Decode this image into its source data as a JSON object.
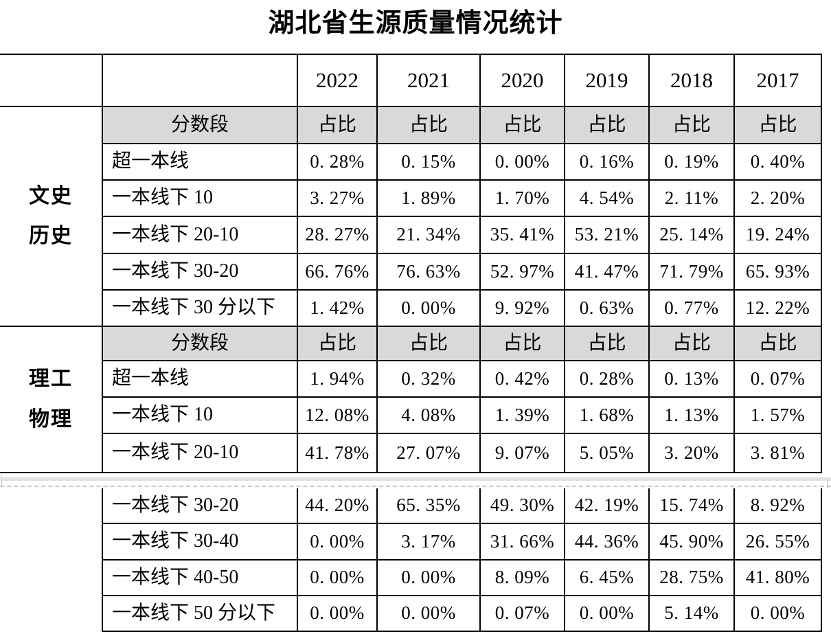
{
  "title": "湖北省生源质量情况统计",
  "table": {
    "years": [
      "2022",
      "2021",
      "2020",
      "2019",
      "2018",
      "2017"
    ],
    "score_band_header": "分数段",
    "ratio_header": "占比",
    "groups": [
      {
        "name_lines": [
          "文史",
          "历史"
        ],
        "rows": [
          {
            "label": "超一本线",
            "values": [
              "0. 28%",
              "0. 15%",
              "0. 00%",
              "0. 16%",
              "0. 19%",
              "0. 40%"
            ]
          },
          {
            "label": "一本线下 10",
            "values": [
              "3. 27%",
              "1. 89%",
              "1. 70%",
              "4. 54%",
              "2. 11%",
              "2. 20%"
            ]
          },
          {
            "label": "一本线下 20-10",
            "values": [
              "28. 27%",
              "21. 34%",
              "35. 41%",
              "53. 21%",
              "25. 14%",
              "19. 24%"
            ]
          },
          {
            "label": "一本线下 30-20",
            "values": [
              "66. 76%",
              "76. 63%",
              "52. 97%",
              "41. 47%",
              "71. 79%",
              "65. 93%"
            ]
          },
          {
            "label": "一本线下 30 分以下",
            "values": [
              "1. 42%",
              "0. 00%",
              "9. 92%",
              "0. 63%",
              "0. 77%",
              "12. 22%"
            ]
          }
        ]
      },
      {
        "name_lines": [
          "理工",
          "物理"
        ],
        "rows": [
          {
            "label": "超一本线",
            "values": [
              "1. 94%",
              "0. 32%",
              "0. 42%",
              "0. 28%",
              "0. 13%",
              "0. 07%"
            ]
          },
          {
            "label": "一本线下 10",
            "values": [
              "12. 08%",
              "4. 08%",
              "1. 39%",
              "1. 68%",
              "1. 13%",
              "1. 57%"
            ]
          },
          {
            "label": "一本线下 20-10",
            "values": [
              "41. 78%",
              "27. 07%",
              "9. 07%",
              "5. 05%",
              "3. 20%",
              "3. 81%"
            ]
          }
        ]
      },
      {
        "name_lines": [],
        "rows": [
          {
            "label": "一本线下 30-20",
            "values": [
              "44. 20%",
              "65. 35%",
              "49. 30%",
              "42. 19%",
              "15. 74%",
              "8. 92%"
            ]
          },
          {
            "label": "一本线下 30-40",
            "values": [
              "0. 00%",
              "3. 17%",
              "31. 66%",
              "44. 36%",
              "45. 90%",
              "26. 55%"
            ]
          },
          {
            "label": "一本线下 40-50",
            "values": [
              "0. 00%",
              "0. 00%",
              "8. 09%",
              "6. 45%",
              "28. 75%",
              "41. 80%"
            ]
          },
          {
            "label": "一本线下 50 分以下",
            "values": [
              "0. 00%",
              "0. 00%",
              "0. 07%",
              "0. 00%",
              "5. 14%",
              "0. 00%"
            ]
          }
        ]
      }
    ]
  },
  "colors": {
    "border": "#000000",
    "header_fill": "#d9d9d9",
    "page_break_band": "#e2e2e2",
    "page_break_dashed": "#c6c6c6"
  }
}
